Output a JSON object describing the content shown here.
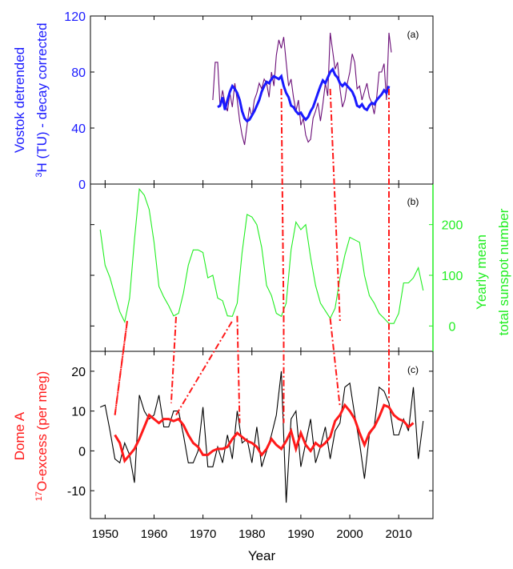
{
  "figure": {
    "xlabel": "Year",
    "xticks": [
      1950,
      1960,
      1970,
      1980,
      1990,
      2000,
      2010
    ],
    "xlim": [
      1947,
      2017
    ],
    "connector_years": [
      [
        1952,
        1954.5,
        1963.5
      ],
      [
        1964.5,
        1976,
        1977.5
      ],
      [
        1986,
        1986.5
      ],
      [
        1996,
        1998
      ],
      [
        2008,
        2008
      ]
    ]
  },
  "chart_data": [
    {
      "panel": "(a)",
      "type": "line",
      "ylabel_line1": "Vostok detrended",
      "ylabel_line2_sup": "3",
      "ylabel_line2": "H (TU) - decay corrected",
      "ylabel_color": "#1a1aff",
      "ylim": [
        0,
        120
      ],
      "yticks": [
        0,
        40,
        80,
        120
      ],
      "series": [
        {
          "color": "#6b0f78",
          "x": [
            1972,
            1972.5,
            1973,
            1973.5,
            1974,
            1974.5,
            1975,
            1975.5,
            1976,
            1976.5,
            1977,
            1977.5,
            1978,
            1978.5,
            1979,
            1979.5,
            1980,
            1980.5,
            1981,
            1981.5,
            1982,
            1982.5,
            1983,
            1983.5,
            1984,
            1984.5,
            1985,
            1985.5,
            1986,
            1986.5,
            1987,
            1987.5,
            1988,
            1988.5,
            1989,
            1989.5,
            1990,
            1990.5,
            1991,
            1991.5,
            1992,
            1992.5,
            1993,
            1993.5,
            1994,
            1994.5,
            1995,
            1995.5,
            1996,
            1996.5,
            1997,
            1997.5,
            1998,
            1998.5,
            1999,
            1999.5,
            2000,
            2000.5,
            2001,
            2001.5,
            2002,
            2002.5,
            2003,
            2003.5,
            2004,
            2004.5,
            2005,
            2005.5,
            2006,
            2006.5,
            2007,
            2007.5,
            2008,
            2008.5
          ],
          "values": [
            60,
            87,
            87,
            55,
            67,
            58,
            52,
            65,
            55,
            72,
            60,
            45,
            35,
            28,
            42,
            55,
            48,
            60,
            65,
            72,
            68,
            75,
            72,
            62,
            80,
            70,
            92,
            103,
            97,
            105,
            87,
            70,
            75,
            62,
            52,
            60,
            42,
            47,
            35,
            30,
            32,
            47,
            52,
            58,
            45,
            57,
            72,
            63,
            108,
            95,
            82,
            87,
            68,
            55,
            60,
            72,
            80,
            93,
            87,
            68,
            70,
            60,
            66,
            72,
            62,
            58,
            50,
            62,
            80,
            80,
            86,
            60,
            108,
            94
          ]
        },
        {
          "color": "#1a1aff",
          "x": [
            1973,
            1973.5,
            1974,
            1974.5,
            1975,
            1975.5,
            1976,
            1976.5,
            1977,
            1977.5,
            1978,
            1978.5,
            1979,
            1979.5,
            1980,
            1980.5,
            1981,
            1981.5,
            1982,
            1982.5,
            1983,
            1983.5,
            1984,
            1984.5,
            1985,
            1985.5,
            1986,
            1986.5,
            1987,
            1987.5,
            1988,
            1988.5,
            1989,
            1989.5,
            1990,
            1990.5,
            1991,
            1991.5,
            1992,
            1992.5,
            1993,
            1993.5,
            1994,
            1994.5,
            1995,
            1995.5,
            1996,
            1996.5,
            1997,
            1997.5,
            1998,
            1998.5,
            1999,
            1999.5,
            2000,
            2000.5,
            2001,
            2001.5,
            2002,
            2002.5,
            2003,
            2003.5,
            2004,
            2004.5,
            2005,
            2005.5,
            2006,
            2006.5,
            2007,
            2007.5,
            2008
          ],
          "values": [
            55,
            56,
            62,
            53,
            60,
            66,
            70,
            68,
            65,
            60,
            52,
            47,
            45,
            46,
            49,
            52,
            56,
            60,
            66,
            70,
            73,
            72,
            75,
            77,
            76,
            75,
            77,
            70,
            65,
            62,
            56,
            55,
            52,
            50,
            51,
            48,
            46,
            48,
            52,
            55,
            60,
            65,
            70,
            74,
            72,
            76,
            80,
            82,
            78,
            76,
            72,
            70,
            72,
            70,
            68,
            66,
            62,
            56,
            55,
            57,
            54,
            53,
            56,
            58,
            57,
            60,
            62,
            64,
            67,
            65,
            70
          ]
        }
      ]
    },
    {
      "panel": "(b)",
      "type": "line",
      "ylabel_line1": "Yearly mean",
      "ylabel_line2": "total sunspot number",
      "ylabel_color": "#22ee22",
      "ylim": [
        -50,
        280
      ],
      "yticks": [
        0,
        100,
        200
      ],
      "series": [
        {
          "color": "#22ee22",
          "x": [
            1949,
            1950,
            1951,
            1952,
            1953,
            1954,
            1955,
            1956,
            1957,
            1958,
            1959,
            1960,
            1961,
            1962,
            1963,
            1964,
            1965,
            1966,
            1967,
            1968,
            1969,
            1970,
            1971,
            1972,
            1973,
            1974,
            1975,
            1976,
            1977,
            1978,
            1979,
            1980,
            1981,
            1982,
            1983,
            1984,
            1985,
            1986,
            1987,
            1988,
            1989,
            1990,
            1991,
            1992,
            1993,
            1994,
            1995,
            1996,
            1997,
            1998,
            1999,
            2000,
            2001,
            2002,
            2003,
            2004,
            2005,
            2006,
            2007,
            2008,
            2009,
            2010,
            2011,
            2012,
            2013,
            2014,
            2015
          ],
          "values": [
            190,
            120,
            95,
            60,
            28,
            8,
            55,
            170,
            270,
            258,
            230,
            165,
            78,
            57,
            40,
            20,
            25,
            65,
            120,
            150,
            150,
            145,
            95,
            100,
            55,
            50,
            20,
            19,
            45,
            145,
            220,
            215,
            200,
            155,
            80,
            60,
            25,
            19,
            45,
            150,
            205,
            190,
            200,
            135,
            80,
            45,
            30,
            15,
            35,
            95,
            140,
            175,
            170,
            165,
            100,
            60,
            45,
            25,
            15,
            5,
            5,
            25,
            85,
            85,
            95,
            115,
            70
          ]
        }
      ]
    },
    {
      "panel": "(c)",
      "type": "line",
      "ylabel_line1": "Dome A",
      "ylabel_line2_sup": "17",
      "ylabel_line2": "O-excess (per meg)",
      "ylabel_color": "#ff1a1a",
      "ylim": [
        -17,
        25
      ],
      "yticks": [
        -10,
        0,
        10,
        20
      ],
      "series": [
        {
          "color": "#000000",
          "x": [
            1949,
            1950,
            1951,
            1952,
            1953,
            1954,
            1955,
            1956,
            1957,
            1958,
            1959,
            1960,
            1961,
            1962,
            1963,
            1964,
            1965,
            1966,
            1967,
            1968,
            1969,
            1970,
            1971,
            1972,
            1973,
            1974,
            1975,
            1976,
            1977,
            1978,
            1979,
            1980,
            1981,
            1982,
            1983,
            1984,
            1985,
            1986,
            1987,
            1988,
            1989,
            1990,
            1991,
            1992,
            1993,
            1994,
            1995,
            1996,
            1997,
            1998,
            1999,
            2000,
            2001,
            2002,
            2003,
            2004,
            2005,
            2006,
            2007,
            2008,
            2009,
            2010,
            2011,
            2012,
            2013,
            2014,
            2015
          ],
          "values": [
            11,
            11.5,
            5,
            -2,
            -3,
            2,
            -1,
            -8,
            14,
            10,
            8,
            9,
            14,
            6,
            6,
            10,
            10,
            4,
            -3,
            -3,
            0,
            11,
            -4,
            -4,
            1,
            -3,
            4,
            -2,
            10,
            2,
            3,
            -3,
            6,
            -4,
            0,
            4,
            9,
            20,
            -13,
            8,
            10,
            -4,
            2,
            8,
            -3,
            1,
            6,
            -2,
            5,
            7,
            16,
            17,
            9,
            2,
            -7,
            4,
            6,
            16,
            15,
            12,
            4,
            4,
            8,
            5,
            16,
            -2,
            7.5
          ]
        },
        {
          "color": "#ff1a1a",
          "x": [
            1952,
            1953,
            1954,
            1955,
            1956,
            1957,
            1958,
            1959,
            1960,
            1961,
            1962,
            1963,
            1964,
            1965,
            1966,
            1967,
            1968,
            1969,
            1970,
            1971,
            1972,
            1973,
            1974,
            1975,
            1976,
            1977,
            1978,
            1979,
            1980,
            1981,
            1982,
            1983,
            1984,
            1985,
            1986,
            1987,
            1988,
            1989,
            1990,
            1991,
            1992,
            1993,
            1994,
            1995,
            1996,
            1997,
            1998,
            1999,
            2000,
            2001,
            2002,
            2003,
            2004,
            2005,
            2006,
            2007,
            2008,
            2009,
            2010,
            2011,
            2012,
            2013
          ],
          "values": [
            4,
            2,
            -2.5,
            -1,
            0.5,
            3,
            6,
            9,
            8,
            7,
            8,
            8,
            7.5,
            8,
            6.5,
            4,
            2,
            1,
            -1,
            -1,
            0,
            0.5,
            0.5,
            1,
            3,
            4.5,
            3.5,
            2.5,
            2,
            1,
            -1,
            0.5,
            3,
            1.5,
            0.5,
            2.5,
            5,
            0.5,
            4.5,
            1.5,
            0,
            2,
            1,
            2,
            3.5,
            7.5,
            9,
            11.5,
            10,
            8,
            4.5,
            1.5,
            4.5,
            6,
            8.5,
            11.5,
            11,
            9,
            8,
            7.5,
            6,
            7
          ]
        }
      ]
    }
  ]
}
